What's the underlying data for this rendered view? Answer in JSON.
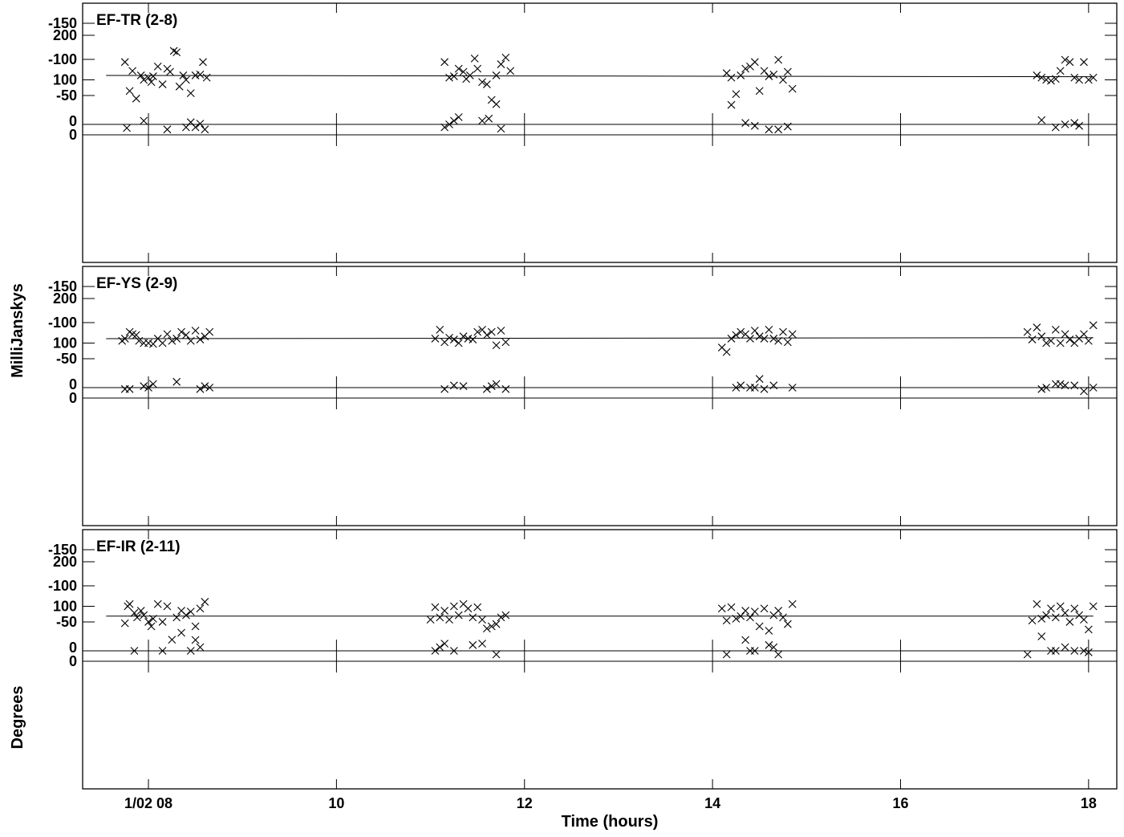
{
  "chart_data": {
    "type": "scatter",
    "xlabel": "Time (hours)",
    "ylabel_amp": "MilliJanskys",
    "ylabel_phase": "Degrees",
    "x_ticks": [
      {
        "value": 8,
        "label": "1/02 08"
      },
      {
        "value": 10,
        "label": "10"
      },
      {
        "value": 12,
        "label": "12"
      },
      {
        "value": 14,
        "label": "14"
      },
      {
        "value": 16,
        "label": "16"
      },
      {
        "value": 18,
        "label": "18"
      }
    ],
    "xlim": [
      7.3,
      18.3
    ],
    "amp_ylim": [
      0,
      260
    ],
    "phase_ylim": [
      -180,
      10
    ],
    "amp_ticks": [
      100,
      200
    ],
    "amp_zero_label": "0",
    "phase_ticks": [
      0,
      -50,
      -100,
      -150
    ],
    "panels": [
      {
        "title": "EF-TR (2-8)",
        "amp_fit": [
          [
            7.55,
            110
          ],
          [
            18.05,
            107
          ]
        ],
        "amp_x": [
          7.75,
          7.8,
          7.83,
          7.87,
          7.92,
          7.95,
          8.0,
          8.03,
          8.05,
          8.1,
          8.15,
          8.2,
          8.23,
          8.27,
          8.3,
          8.33,
          8.37,
          8.4,
          8.45,
          8.5,
          8.55,
          8.58,
          8.62,
          11.15,
          11.2,
          11.25,
          11.3,
          11.35,
          11.38,
          11.42,
          11.47,
          11.5,
          11.55,
          11.6,
          11.65,
          11.7,
          11.75,
          11.8,
          11.85,
          14.15,
          14.2,
          14.25,
          14.3,
          14.35,
          14.4,
          14.45,
          14.5,
          14.55,
          14.6,
          14.65,
          14.7,
          14.75,
          14.8,
          14.85,
          17.45,
          17.5,
          17.55,
          17.6,
          17.65,
          17.7,
          17.75,
          17.8,
          17.85,
          17.9,
          17.95,
          18.0,
          18.05
        ],
        "amp_y": [
          140,
          75,
          120,
          58,
          110,
          100,
          105,
          95,
          108,
          130,
          90,
          125,
          118,
          165,
          162,
          85,
          110,
          100,
          70,
          110,
          112,
          140,
          105,
          140,
          105,
          108,
          125,
          118,
          102,
          110,
          148,
          125,
          95,
          90,
          55,
          110,
          135,
          150,
          120,
          115,
          105,
          68,
          110,
          125,
          130,
          140,
          75,
          120,
          108,
          112,
          145,
          100,
          118,
          80,
          110,
          105,
          100,
          98,
          102,
          120,
          145,
          140,
          105,
          100,
          140,
          100,
          105
        ],
        "phase_x": [
          7.77,
          7.95,
          8.2,
          8.4,
          8.45,
          8.5,
          8.55,
          8.6,
          11.15,
          11.2,
          11.25,
          11.3,
          11.55,
          11.62,
          11.7,
          11.75,
          14.2,
          14.35,
          14.45,
          14.6,
          14.7,
          14.8,
          17.5,
          17.65,
          17.75,
          17.85,
          17.9
        ],
        "phase_y": [
          -5,
          -15,
          -3,
          -6,
          -13,
          -6,
          -11,
          -3,
          -6,
          -10,
          -15,
          -20,
          -15,
          -18,
          -38,
          -4,
          -37,
          -12,
          -8,
          -3,
          -3,
          -7,
          -16,
          -6,
          -10,
          -12,
          -8
        ]
      },
      {
        "title": "EF-YS (2-9)",
        "amp_fit": [
          [
            7.55,
            110
          ],
          [
            18.05,
            112
          ]
        ],
        "amp_x": [
          7.72,
          7.75,
          7.8,
          7.83,
          7.87,
          7.9,
          7.95,
          8.0,
          8.05,
          8.1,
          8.15,
          8.2,
          8.25,
          8.3,
          8.35,
          8.4,
          8.45,
          8.5,
          8.55,
          8.6,
          8.65,
          11.05,
          11.1,
          11.15,
          11.2,
          11.25,
          11.3,
          11.35,
          11.4,
          11.45,
          11.5,
          11.55,
          11.6,
          11.65,
          11.7,
          11.75,
          11.8,
          14.1,
          14.15,
          14.2,
          14.25,
          14.3,
          14.35,
          14.4,
          14.45,
          14.5,
          14.55,
          14.6,
          14.65,
          14.7,
          14.75,
          14.8,
          14.85,
          17.35,
          17.4,
          17.45,
          17.5,
          17.55,
          17.6,
          17.65,
          17.7,
          17.75,
          17.8,
          17.85,
          17.9,
          17.95,
          18.0,
          18.05
        ],
        "amp_y": [
          105,
          110,
          125,
          120,
          118,
          105,
          100,
          100,
          98,
          110,
          100,
          120,
          105,
          110,
          125,
          118,
          105,
          128,
          108,
          115,
          125,
          110,
          130,
          102,
          112,
          108,
          100,
          115,
          110,
          108,
          125,
          130,
          118,
          125,
          95,
          128,
          102,
          90,
          80,
          110,
          118,
          125,
          120,
          110,
          128,
          115,
          110,
          130,
          110,
          105,
          125,
          102,
          120,
          125,
          108,
          135,
          115,
          100,
          105,
          130,
          100,
          120,
          108,
          100,
          110,
          120,
          105,
          140
        ],
        "phase_x": [
          7.75,
          7.8,
          7.95,
          8.0,
          8.05,
          8.3,
          8.55,
          8.6,
          8.65,
          11.15,
          11.25,
          11.35,
          11.6,
          11.65,
          11.7,
          11.8,
          14.25,
          14.3,
          14.4,
          14.45,
          14.5,
          14.55,
          14.65,
          14.85,
          17.5,
          17.55,
          17.65,
          17.7,
          17.75,
          17.85,
          17.95,
          18.05
        ],
        "phase_y": [
          -8,
          -8,
          -12,
          -10,
          -15,
          -18,
          -8,
          -12,
          -10,
          -8,
          -13,
          -12,
          -8,
          -12,
          -15,
          -8,
          -10,
          -13,
          -10,
          -10,
          -22,
          -8,
          -13,
          -10,
          -8,
          -10,
          -15,
          -15,
          -13,
          -13,
          -5,
          -10
        ]
      },
      {
        "title": "EF-IR (2-11)",
        "amp_fit": [
          [
            7.55,
            78
          ],
          [
            18.05,
            78
          ]
        ],
        "amp_x": [
          7.75,
          7.78,
          7.8,
          7.85,
          7.88,
          7.92,
          7.95,
          8.0,
          8.03,
          8.05,
          8.1,
          8.15,
          8.2,
          8.25,
          8.3,
          8.35,
          8.4,
          8.45,
          8.5,
          8.55,
          8.6,
          11.0,
          11.05,
          11.1,
          11.15,
          11.2,
          11.25,
          11.3,
          11.35,
          11.4,
          11.45,
          11.5,
          11.55,
          11.6,
          11.65,
          11.7,
          11.75,
          11.8,
          14.1,
          14.15,
          14.2,
          14.25,
          14.3,
          14.35,
          14.4,
          14.45,
          14.5,
          14.55,
          14.6,
          14.65,
          14.7,
          14.75,
          14.8,
          14.85,
          17.4,
          17.45,
          17.5,
          17.55,
          17.6,
          17.65,
          17.7,
          17.75,
          17.8,
          17.85,
          17.9,
          17.95,
          18.0,
          18.05
        ],
        "amp_y": [
          62,
          100,
          105,
          85,
          75,
          90,
          80,
          65,
          55,
          72,
          105,
          65,
          100,
          25,
          75,
          90,
          80,
          88,
          55,
          95,
          110,
          70,
          98,
          75,
          90,
          70,
          100,
          80,
          105,
          95,
          75,
          98,
          70,
          50,
          55,
          60,
          75,
          80,
          95,
          68,
          98,
          72,
          78,
          90,
          75,
          88,
          55,
          95,
          45,
          80,
          90,
          75,
          60,
          105,
          68,
          105,
          72,
          80,
          95,
          75,
          100,
          85,
          65,
          95,
          80,
          70,
          48,
          100
        ],
        "phase_x": [
          7.85,
          8.15,
          8.35,
          8.45,
          8.5,
          8.55,
          11.05,
          11.1,
          11.15,
          11.25,
          11.45,
          11.55,
          11.7,
          14.15,
          14.35,
          14.4,
          14.45,
          14.6,
          14.65,
          14.7,
          17.35,
          17.5,
          17.6,
          17.65,
          17.75,
          17.85,
          17.95,
          18.0
        ],
        "phase_y": [
          -10,
          -10,
          -35,
          -10,
          -25,
          -15,
          -10,
          -15,
          -20,
          -10,
          -18,
          -20,
          -5,
          -5,
          -25,
          -10,
          -10,
          -18,
          -15,
          -5,
          -5,
          -30,
          -10,
          -10,
          -15,
          -10,
          -10,
          -8
        ]
      }
    ]
  }
}
